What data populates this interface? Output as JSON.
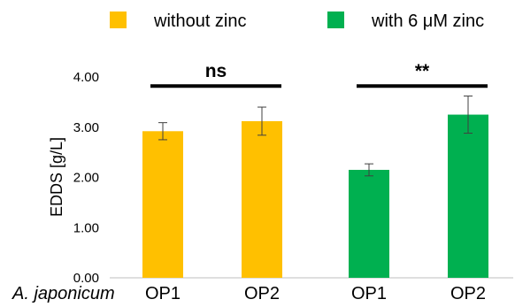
{
  "chart_data": {
    "type": "bar",
    "title": "",
    "ylabel": "EDDS [g/L]",
    "ylim": [
      0,
      4
    ],
    "yticks": [
      "0.00",
      "1.00",
      "2.00",
      "3.00",
      "4.00"
    ],
    "grid": false,
    "legend_position": "top",
    "x_prefix_label": "A. japonicum",
    "categories": [
      "OP1",
      "OP2",
      "OP1",
      "OP2"
    ],
    "bars": [
      {
        "group": "without zinc",
        "category": "OP1",
        "value": 2.92,
        "error": 0.17,
        "color": "#FFC000"
      },
      {
        "group": "without zinc",
        "category": "OP2",
        "value": 3.12,
        "error": 0.28,
        "color": "#FFC000"
      },
      {
        "group": "with 6 μM zinc",
        "category": "OP1",
        "value": 2.15,
        "error": 0.12,
        "color": "#00B050"
      },
      {
        "group": "with 6 μM zinc",
        "category": "OP2",
        "value": 3.25,
        "error": 0.37,
        "color": "#00B050"
      }
    ],
    "series": [
      {
        "name": "without zinc",
        "color": "#FFC000"
      },
      {
        "name": "with 6 μM zinc",
        "color": "#00B050"
      }
    ],
    "annotations": [
      {
        "text": "ns",
        "span": [
          0,
          1
        ],
        "level": 3.82
      },
      {
        "text": "**",
        "span": [
          2,
          3
        ],
        "level": 3.82
      }
    ]
  }
}
